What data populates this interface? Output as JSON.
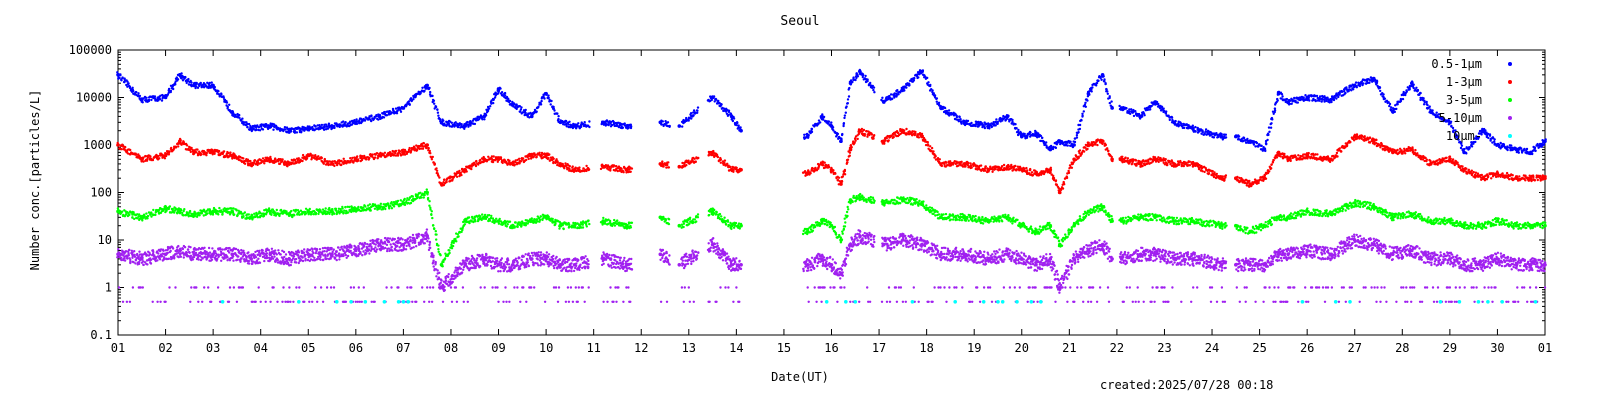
{
  "chart_data": {
    "type": "scatter",
    "title": "Seoul",
    "xlabel": "Date(UT)",
    "ylabel": "Number conc.[particles/L]",
    "yscale": "log",
    "ylim": [
      0.1,
      100000
    ],
    "xlim": [
      0,
      30
    ],
    "y_ticks": [
      "0.1",
      "1",
      "10",
      "100",
      "1000",
      "10000",
      "100000"
    ],
    "x_ticks": [
      "01",
      "02",
      "03",
      "04",
      "05",
      "06",
      "07",
      "08",
      "09",
      "10",
      "11",
      "12",
      "13",
      "14",
      "15",
      "16",
      "17",
      "18",
      "19",
      "20",
      "21",
      "22",
      "23",
      "24",
      "25",
      "26",
      "27",
      "28",
      "29",
      "30",
      "01"
    ],
    "legend_position": "top-right",
    "data_gaps_days": [
      [
        9.9,
        10.15
      ],
      [
        10.8,
        11.4
      ],
      [
        11.6,
        11.85
      ],
      [
        12.2,
        12.4
      ],
      [
        13.1,
        14.4
      ],
      [
        15.9,
        16.05
      ],
      [
        20.9,
        21.05
      ],
      [
        23.3,
        23.5
      ]
    ],
    "series": [
      {
        "name": "0.5-1μm",
        "color": "#0000ff",
        "x": [
          0,
          0.5,
          1.0,
          1.3,
          1.6,
          2.0,
          2.4,
          2.8,
          3.2,
          3.6,
          4.0,
          4.5,
          5.0,
          5.5,
          6.0,
          6.5,
          6.8,
          7.3,
          7.7,
          8.0,
          8.3,
          8.7,
          9.0,
          9.3,
          9.6,
          10.2,
          10.7,
          11.4,
          11.8,
          12.5,
          12.9,
          13.1,
          14.5,
          14.8,
          15.0,
          15.2,
          15.4,
          15.6,
          16.1,
          16.5,
          16.9,
          17.3,
          17.8,
          18.3,
          18.7,
          19.0,
          19.3,
          19.6,
          19.8,
          20.1,
          20.4,
          20.7,
          20.9,
          21.1,
          21.5,
          21.8,
          22.2,
          22.6,
          23.2,
          23.5,
          23.8,
          24.1,
          24.4,
          24.6,
          25.0,
          25.5,
          26.0,
          26.4,
          26.8,
          27.2,
          27.6,
          28.0,
          28.3,
          28.7,
          29.0,
          29.4,
          29.7,
          30.0
        ],
        "y": [
          30000,
          9000,
          10000,
          30000,
          18000,
          18000,
          5000,
          2200,
          2500,
          2000,
          2200,
          2500,
          3000,
          4000,
          6000,
          18000,
          3000,
          2500,
          4000,
          15000,
          7000,
          4000,
          12000,
          3000,
          2500,
          3000,
          2500,
          3000,
          2500,
          10000,
          4000,
          2000,
          1500,
          4000,
          2500,
          1200,
          20000,
          35000,
          8000,
          15000,
          35000,
          6000,
          3000,
          2500,
          4000,
          1500,
          1800,
          800,
          1200,
          1000,
          12000,
          30000,
          6000,
          6000,
          4000,
          8000,
          3000,
          2200,
          1500,
          1500,
          1200,
          800,
          12000,
          8000,
          10000,
          9000,
          18000,
          25000,
          5000,
          20000,
          5000,
          3000,
          700,
          2000,
          1000,
          800,
          700,
          1200
        ]
      },
      {
        "name": "1-3μm",
        "color": "#ff0000",
        "x": [
          0,
          0.5,
          1.0,
          1.3,
          1.6,
          2.0,
          2.4,
          2.8,
          3.2,
          3.6,
          4.0,
          4.5,
          5.0,
          5.5,
          6.0,
          6.5,
          6.8,
          7.3,
          7.7,
          8.0,
          8.3,
          8.7,
          9.0,
          9.3,
          9.6,
          10.2,
          10.7,
          11.4,
          11.8,
          12.5,
          12.9,
          13.1,
          14.5,
          14.8,
          15.0,
          15.2,
          15.4,
          15.6,
          16.1,
          16.5,
          16.9,
          17.3,
          17.8,
          18.3,
          18.7,
          19.0,
          19.3,
          19.6,
          19.8,
          20.1,
          20.4,
          20.7,
          20.9,
          21.1,
          21.5,
          21.8,
          22.2,
          22.6,
          23.2,
          23.5,
          23.8,
          24.1,
          24.4,
          24.6,
          25.0,
          25.5,
          26.0,
          26.4,
          26.8,
          27.2,
          27.6,
          28.0,
          28.3,
          28.7,
          29.0,
          29.4,
          29.7,
          30.0
        ],
        "y": [
          1000,
          500,
          600,
          1200,
          700,
          700,
          600,
          400,
          500,
          400,
          600,
          400,
          500,
          600,
          700,
          1000,
          150,
          300,
          500,
          500,
          400,
          600,
          600,
          400,
          300,
          350,
          300,
          400,
          350,
          700,
          300,
          300,
          250,
          400,
          300,
          150,
          800,
          2000,
          1200,
          2000,
          1500,
          400,
          400,
          300,
          350,
          300,
          250,
          300,
          100,
          500,
          1000,
          1200,
          500,
          500,
          400,
          500,
          400,
          400,
          200,
          200,
          150,
          200,
          700,
          500,
          600,
          500,
          1500,
          1200,
          700,
          800,
          400,
          500,
          300,
          200,
          250,
          200,
          200,
          200
        ]
      },
      {
        "name": "3-5μm",
        "color": "#00ff00",
        "x": [
          0,
          0.5,
          1.0,
          1.3,
          1.6,
          2.0,
          2.4,
          2.8,
          3.2,
          3.6,
          4.0,
          4.5,
          5.0,
          5.5,
          6.0,
          6.5,
          6.8,
          7.3,
          7.7,
          8.0,
          8.3,
          8.7,
          9.0,
          9.3,
          9.6,
          10.2,
          10.7,
          11.4,
          11.8,
          12.5,
          12.9,
          13.1,
          14.5,
          14.8,
          15.0,
          15.2,
          15.4,
          15.6,
          16.1,
          16.5,
          16.9,
          17.3,
          17.8,
          18.3,
          18.7,
          19.0,
          19.3,
          19.6,
          19.8,
          20.1,
          20.4,
          20.7,
          20.9,
          21.1,
          21.5,
          21.8,
          22.2,
          22.6,
          23.2,
          23.5,
          23.8,
          24.1,
          24.4,
          24.6,
          25.0,
          25.5,
          26.0,
          26.4,
          26.8,
          27.2,
          27.6,
          28.0,
          28.3,
          28.7,
          29.0,
          29.4,
          29.7,
          30.0
        ],
        "y": [
          40,
          30,
          45,
          40,
          35,
          40,
          40,
          30,
          40,
          35,
          40,
          40,
          45,
          50,
          60,
          100,
          3,
          25,
          30,
          25,
          20,
          25,
          30,
          20,
          20,
          25,
          20,
          30,
          20,
          40,
          20,
          20,
          15,
          25,
          20,
          10,
          70,
          80,
          60,
          70,
          60,
          30,
          30,
          25,
          30,
          20,
          15,
          20,
          8,
          20,
          40,
          50,
          25,
          25,
          30,
          30,
          25,
          25,
          20,
          20,
          15,
          20,
          30,
          30,
          40,
          35,
          60,
          50,
          30,
          35,
          25,
          25,
          20,
          20,
          25,
          20,
          20,
          20
        ]
      },
      {
        "name": "5-10μm",
        "color": "#a020f0",
        "x": [
          0,
          0.5,
          1.0,
          1.3,
          1.6,
          2.0,
          2.4,
          2.8,
          3.2,
          3.6,
          4.0,
          4.5,
          5.0,
          5.5,
          6.0,
          6.5,
          6.8,
          7.3,
          7.7,
          8.0,
          8.3,
          8.7,
          9.0,
          9.3,
          9.6,
          10.2,
          10.7,
          11.4,
          11.8,
          12.5,
          12.9,
          13.1,
          14.5,
          14.8,
          15.0,
          15.2,
          15.4,
          15.6,
          16.1,
          16.5,
          16.9,
          17.3,
          17.8,
          18.3,
          18.7,
          19.0,
          19.3,
          19.6,
          19.8,
          20.1,
          20.4,
          20.7,
          20.9,
          21.1,
          21.5,
          21.8,
          22.2,
          22.6,
          23.2,
          23.5,
          23.8,
          24.1,
          24.4,
          24.6,
          25.0,
          25.5,
          26.0,
          26.4,
          26.8,
          27.2,
          27.6,
          28.0,
          28.3,
          28.7,
          29.0,
          29.4,
          29.7,
          30.0
        ],
        "y": [
          5,
          4,
          5,
          6,
          5,
          5,
          5,
          4,
          5,
          4,
          5,
          5,
          6,
          8,
          8,
          12,
          1,
          3,
          4,
          3,
          3,
          4,
          4,
          3,
          3,
          4,
          3,
          5,
          3,
          8,
          3,
          3,
          3,
          4,
          3,
          2,
          8,
          12,
          8,
          10,
          8,
          5,
          5,
          4,
          5,
          4,
          3,
          4,
          1,
          4,
          6,
          8,
          4,
          4,
          5,
          5,
          4,
          4,
          3,
          3,
          3,
          3,
          5,
          5,
          6,
          5,
          10,
          8,
          5,
          6,
          4,
          4,
          3,
          3,
          4,
          3,
          3,
          3
        ]
      },
      {
        "name": "10μm-",
        "color": "#00ffff",
        "x": [
          2.2,
          3.8,
          4.6,
          4.9,
          5.2,
          5.6,
          5.9,
          6.0,
          6.1,
          14.9,
          15.3,
          15.5,
          16.7,
          17.6,
          18.2,
          18.5,
          18.6,
          18.9,
          19.2,
          19.4,
          24.9,
          25.6,
          25.9,
          27.8,
          28.2,
          28.6,
          28.8,
          29.1,
          29.8
        ],
        "y": [
          0.5,
          0.5,
          0.5,
          0.5,
          0.5,
          0.5,
          0.5,
          0.5,
          0.5,
          0.5,
          0.5,
          0.5,
          0.5,
          0.5,
          0.5,
          0.5,
          0.5,
          0.5,
          0.5,
          0.5,
          0.5,
          0.5,
          0.5,
          0.5,
          0.5,
          0.5,
          0.5,
          0.5,
          0.5
        ]
      }
    ],
    "created": "created:2025/07/28 00:18"
  }
}
